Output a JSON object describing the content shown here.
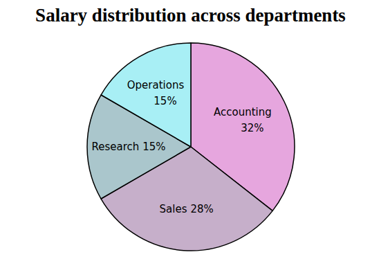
{
  "chart_data": {
    "type": "pie",
    "title": "Salary distribution across departments",
    "categories": [
      "Accounting",
      "Sales",
      "Research",
      "Operations"
    ],
    "values": [
      32,
      28,
      15,
      15
    ],
    "value_labels": [
      "32%",
      "28%",
      "15%",
      "15%"
    ],
    "colors": [
      "#e6a6de",
      "#c6afca",
      "#aac6cc",
      "#a8eff5"
    ],
    "data_labels": true
  }
}
